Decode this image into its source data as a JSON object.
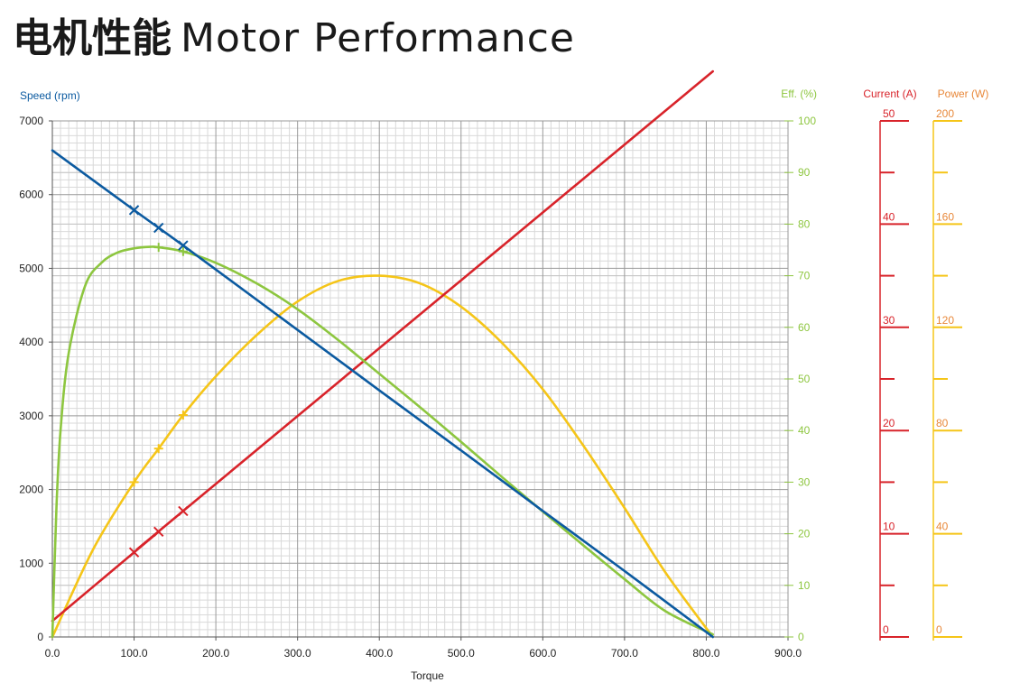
{
  "title": {
    "cn": "电机性能",
    "en": "Motor Performance"
  },
  "colors": {
    "speed": "#0b5aa0",
    "efficiency": "#8dc63f",
    "current": "#d8232a",
    "power": "#f5c518",
    "grid_minor": "#d9d9d9",
    "grid_major": "#999999",
    "text": "#222222",
    "eff_axis_text": "#8dc63f",
    "current_axis_text": "#d8232a",
    "power_axis_text": "#e8883a"
  },
  "chart_data": {
    "type": "line",
    "xlabel": "Torque",
    "xlim": [
      0,
      900
    ],
    "x_ticks": [
      "0.0",
      "100.0",
      "200.0",
      "300.0",
      "400.0",
      "500.0",
      "600.0",
      "700.0",
      "800.0",
      "900.0"
    ],
    "axes": {
      "speed": {
        "label": "Speed (rpm)",
        "range": [
          0,
          7000
        ],
        "ticks": [
          "0",
          "1000",
          "2000",
          "3000",
          "4000",
          "5000",
          "6000",
          "7000"
        ]
      },
      "efficiency": {
        "label": "Eff. (%)",
        "range": [
          0,
          100
        ],
        "ticks": [
          "0",
          "10",
          "20",
          "30",
          "40",
          "50",
          "60",
          "70",
          "80",
          "90",
          "100"
        ]
      },
      "current": {
        "label": "Current (A)",
        "range": [
          0,
          50
        ],
        "ticks": [
          "0",
          "10",
          "20",
          "30",
          "40",
          "50"
        ]
      },
      "power": {
        "label": "Power (W)",
        "range": [
          0,
          200
        ],
        "ticks": [
          "0",
          "40",
          "80",
          "120",
          "160",
          "200"
        ]
      }
    },
    "series": [
      {
        "key": "speed",
        "axis": "speed",
        "x": [
          0,
          100,
          130,
          160,
          300,
          400,
          500,
          600,
          700,
          808
        ],
        "values": [
          6600,
          5790,
          5550,
          5310,
          4165,
          3345,
          2530,
          1710,
          895,
          0
        ],
        "markers_x": [
          100,
          130,
          160
        ]
      },
      {
        "key": "efficiency",
        "axis": "efficiency",
        "x": [
          0,
          5,
          10,
          20,
          40,
          60,
          80,
          100,
          120,
          130,
          160,
          200,
          250,
          300,
          350,
          400,
          450,
          500,
          550,
          600,
          650,
          700,
          750,
          808
        ],
        "values": [
          0,
          25,
          40,
          55,
          68,
          72.5,
          74.5,
          75.3,
          75.6,
          75.5,
          74.7,
          72.5,
          68.5,
          63.5,
          57.5,
          51,
          44.5,
          37.8,
          31,
          24.3,
          17.7,
          11.2,
          5,
          0.5
        ],
        "markers_x": [
          130,
          160
        ]
      },
      {
        "key": "current",
        "axis": "current",
        "x": [
          0,
          100,
          130,
          160,
          808
        ],
        "values": [
          1.55,
          8.2,
          10.2,
          12.2,
          54.8
        ],
        "markers_x": [
          100,
          130,
          160
        ]
      },
      {
        "key": "power",
        "axis": "power",
        "x": [
          0,
          50,
          100,
          130,
          160,
          200,
          250,
          300,
          350,
          400,
          450,
          500,
          550,
          600,
          650,
          700,
          750,
          808
        ],
        "values": [
          0,
          34,
          60,
          73,
          86,
          101,
          117,
          130,
          138,
          140,
          137,
          128,
          114,
          96,
          74,
          50,
          25,
          0
        ],
        "markers_x": [
          100,
          130,
          160
        ]
      }
    ]
  }
}
